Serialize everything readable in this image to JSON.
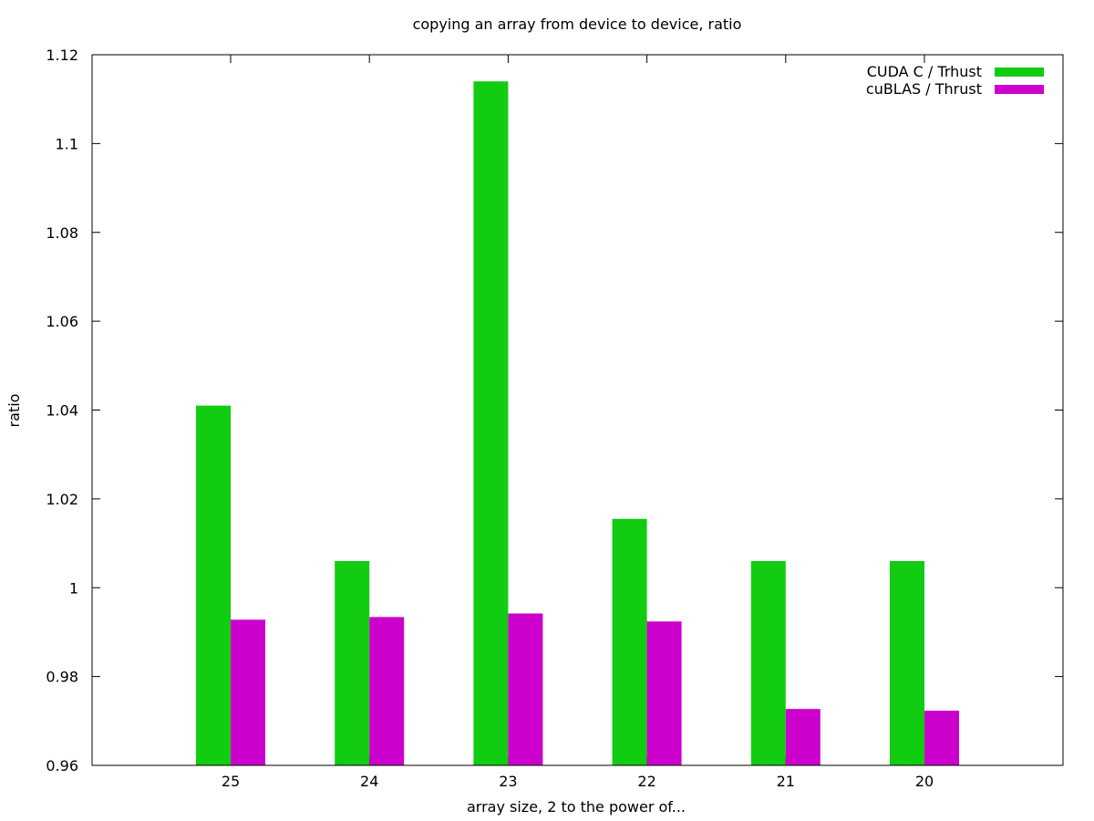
{
  "chart_data": {
    "type": "bar",
    "title": "copying an array from device to device, ratio",
    "xlabel": "array size, 2 to the power of...",
    "ylabel": "ratio",
    "categories": [
      "25",
      "24",
      "23",
      "22",
      "21",
      "20"
    ],
    "ylim": [
      0.96,
      1.12
    ],
    "yticks": [
      "0.96",
      "0.98",
      "1",
      "1.02",
      "1.04",
      "1.06",
      "1.08",
      "1.1",
      "1.12"
    ],
    "grid": false,
    "legend_position": "top-right",
    "series": [
      {
        "name": "CUDA C / Trhust",
        "color": "#11cc11",
        "values": [
          1.041,
          1.006,
          1.114,
          1.0155,
          1.006,
          1.006
        ]
      },
      {
        "name": "cuBLAS / Thrust",
        "color": "#cc00cc",
        "values": [
          0.9928,
          0.9934,
          0.9942,
          0.9924,
          0.9727,
          0.9723
        ]
      }
    ]
  }
}
